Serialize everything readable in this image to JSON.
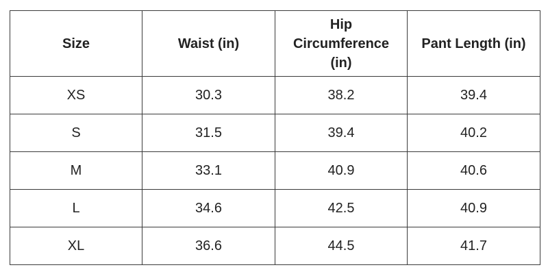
{
  "table": {
    "headers": [
      "Size",
      "Waist (in)",
      "Hip\nCircumference\n(in)",
      "Pant Length (in)"
    ],
    "rows": [
      [
        "XS",
        "30.3",
        "38.2",
        "39.4"
      ],
      [
        "S",
        "31.5",
        "39.4",
        "40.2"
      ],
      [
        "M",
        "33.1",
        "40.9",
        "40.6"
      ],
      [
        "L",
        "34.6",
        "42.5",
        "40.9"
      ],
      [
        "XL",
        "36.6",
        "44.5",
        "41.7"
      ]
    ]
  }
}
